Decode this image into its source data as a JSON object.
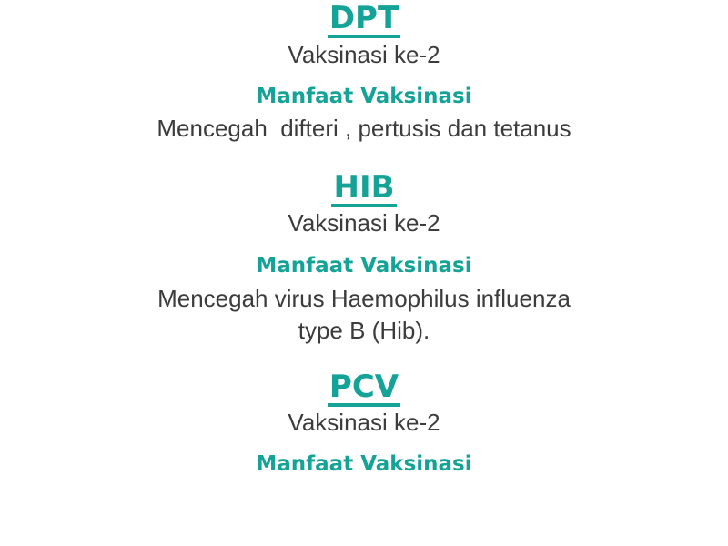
{
  "sections": [
    {
      "heading": "DPT",
      "dose": "Vaksinasi ke-2",
      "benefit_label": "Manfaat Vaksinasi",
      "benefit_lines": [
        "Mencegah  difteri , pertusis dan tetanus"
      ]
    },
    {
      "heading": "HIB ",
      "dose": "Vaksinasi ke-2",
      "benefit_label": "Manfaat Vaksinasi",
      "benefit_lines": [
        "Mencegah virus Haemophilus influenza",
        "type B (Hib)."
      ]
    },
    {
      "heading": "PCV ",
      "dose": "Vaksinasi ke-2",
      "benefit_label": "Manfaat Vaksinasi",
      "benefit_lines": []
    }
  ],
  "colors": {
    "accent": "#14a396",
    "text": "#3c3c3c",
    "background": "#ffffff"
  }
}
